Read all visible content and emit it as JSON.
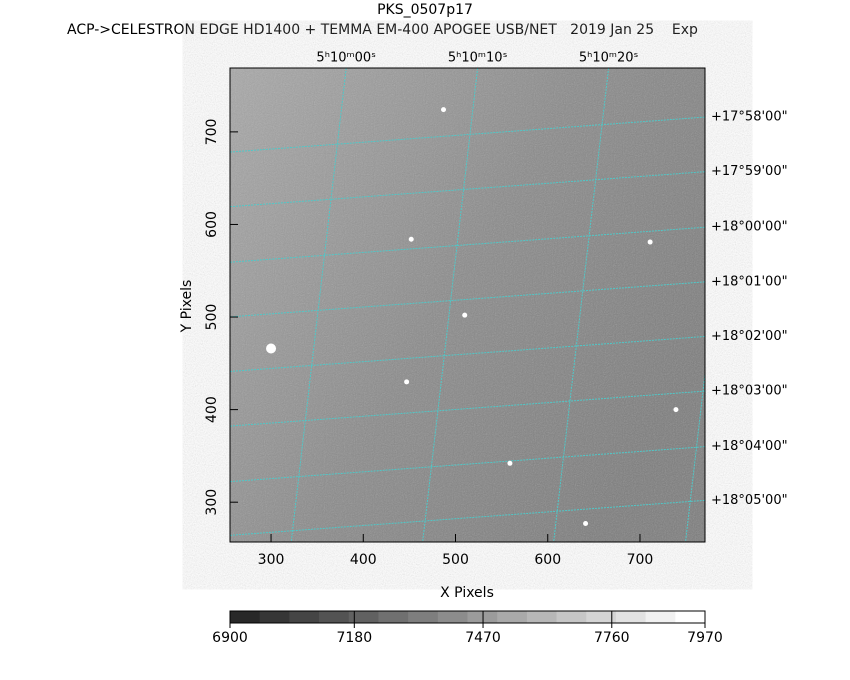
{
  "chart_data": {
    "type": "image",
    "title": "PKS_0507p17",
    "subtitle": "ACP->CELESTRON EDGE HD1400 + TEMMA EM-400 APOGEE USB/NET   2019 Jan 25    Exp",
    "x_label": "X Pixels",
    "y_label": "Y Pixels",
    "xlim": [
      255.5,
      770.5
    ],
    "ylim": [
      257,
      769
    ],
    "xticks": [
      300,
      400,
      500,
      600,
      700
    ],
    "yticks": [
      300,
      400,
      500,
      600,
      700
    ],
    "ra_ticks": [
      {
        "value": 381.5,
        "label": "5ʰ10ᵐ00ˢ"
      },
      {
        "value": 524,
        "label": "5ʰ10ᵐ10ˢ"
      },
      {
        "value": 666,
        "label": "5ʰ10ᵐ20ˢ"
      }
    ],
    "dec_ticks": [
      {
        "value": 716,
        "label": "+17°58'00\""
      },
      {
        "value": 657,
        "label": "+17°59'00\""
      },
      {
        "value": 597,
        "label": "+18°00'00\""
      },
      {
        "value": 538,
        "label": "+18°01'00\""
      },
      {
        "value": 479,
        "label": "+18°02'00\""
      },
      {
        "value": 420,
        "label": "+18°03'00\""
      },
      {
        "value": 360,
        "label": "+18°04'00\""
      },
      {
        "value": 302,
        "label": "+18°05'00\""
      }
    ],
    "grid_color": "#4fc8c8",
    "stars": {
      "x": [
        300,
        510,
        641,
        711,
        739,
        487,
        452,
        559,
        447
      ],
      "y": [
        466,
        502,
        277,
        581,
        400,
        724,
        584,
        342,
        430
      ]
    },
    "colorbar": {
      "lim": [
        6900,
        7970
      ],
      "ticks": [
        6900,
        7180,
        7470,
        7760,
        7970
      ]
    }
  }
}
